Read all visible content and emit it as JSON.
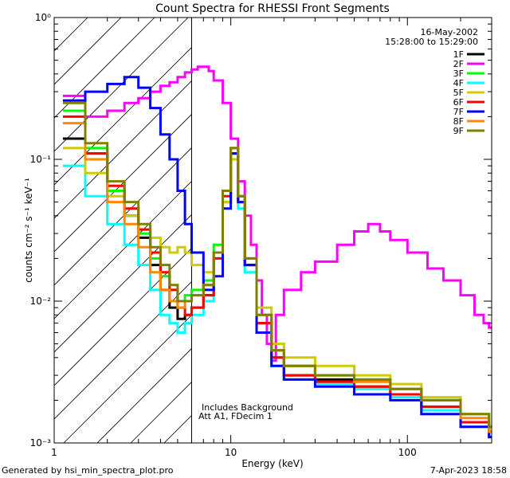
{
  "chart_data": {
    "type": "line",
    "title": "Count Spectra for RHESSI Front Segments",
    "xlabel": "Energy (keV)",
    "ylabel": "counts cm⁻² s⁻¹ keV⁻¹",
    "x_scale": "log",
    "y_scale": "log",
    "xlim": [
      1.0,
      300.0
    ],
    "ylim": [
      0.001,
      1.0
    ],
    "x_ticks": [
      {
        "value": 1,
        "label": "1"
      },
      {
        "value": 10,
        "label": "10"
      },
      {
        "value": 100,
        "label": "100"
      }
    ],
    "y_ticks": [
      {
        "value": 0.001,
        "label": "10⁻³"
      },
      {
        "value": 0.01,
        "label": "10⁻²"
      },
      {
        "value": 0.1,
        "label": "10⁻¹"
      },
      {
        "value": 1,
        "label": "10⁰"
      }
    ],
    "shaded_region": {
      "x_from": 1.0,
      "x_to": 6.0,
      "style": "diagonal-hatch"
    },
    "vertical_line_x": 6.0,
    "info_lines": [
      "16-May-2002",
      "15:28:00 to 15:29:00"
    ],
    "annotations": [
      "Includes Background",
      "Att A1, FDecim 1"
    ],
    "legend_position": "top-right",
    "series": [
      {
        "name": "1F",
        "color": "#000000",
        "points": [
          [
            1.12,
            0.14
          ],
          [
            1.5,
            0.11
          ],
          [
            2,
            0.06
          ],
          [
            2.5,
            0.04
          ],
          [
            3,
            0.028
          ],
          [
            3.5,
            0.018
          ],
          [
            4,
            0.012
          ],
          [
            4.5,
            0.009
          ],
          [
            5,
            0.0075
          ],
          [
            5.5,
            0.008
          ],
          [
            6,
            0.009
          ],
          [
            7,
            0.011
          ],
          [
            8,
            0.02
          ],
          [
            9,
            0.05
          ],
          [
            10,
            0.11
          ],
          [
            11,
            0.05
          ],
          [
            12,
            0.018
          ],
          [
            14,
            0.007
          ],
          [
            17,
            0.004
          ],
          [
            20,
            0.003
          ],
          [
            30,
            0.0028
          ],
          [
            50,
            0.0025
          ],
          [
            80,
            0.0022
          ],
          [
            120,
            0.0018
          ],
          [
            200,
            0.0014
          ],
          [
            290,
            0.0012
          ]
        ]
      },
      {
        "name": "2F",
        "color": "#ff00ff",
        "points": [
          [
            1.12,
            0.28
          ],
          [
            1.5,
            0.2
          ],
          [
            2,
            0.22
          ],
          [
            2.5,
            0.25
          ],
          [
            3,
            0.27
          ],
          [
            3.5,
            0.3
          ],
          [
            4,
            0.33
          ],
          [
            4.5,
            0.35
          ],
          [
            5,
            0.38
          ],
          [
            5.5,
            0.41
          ],
          [
            6,
            0.43
          ],
          [
            6.5,
            0.45
          ],
          [
            7,
            0.45
          ],
          [
            7.5,
            0.42
          ],
          [
            8,
            0.36
          ],
          [
            9,
            0.25
          ],
          [
            10,
            0.14
          ],
          [
            11,
            0.07
          ],
          [
            12,
            0.04
          ],
          [
            13,
            0.025
          ],
          [
            14,
            0.014
          ],
          [
            15,
            0.008
          ],
          [
            16,
            0.005
          ],
          [
            17,
            0.0038
          ],
          [
            18,
            0.008
          ],
          [
            20,
            0.012
          ],
          [
            25,
            0.016
          ],
          [
            30,
            0.019
          ],
          [
            40,
            0.025
          ],
          [
            50,
            0.031
          ],
          [
            60,
            0.035
          ],
          [
            70,
            0.031
          ],
          [
            80,
            0.027
          ],
          [
            100,
            0.022
          ],
          [
            130,
            0.017
          ],
          [
            160,
            0.014
          ],
          [
            200,
            0.011
          ],
          [
            240,
            0.008
          ],
          [
            270,
            0.007
          ],
          [
            290,
            0.0065
          ]
        ]
      },
      {
        "name": "3F",
        "color": "#00ff00",
        "points": [
          [
            1.12,
            0.22
          ],
          [
            1.5,
            0.12
          ],
          [
            2,
            0.06
          ],
          [
            2.5,
            0.045
          ],
          [
            3,
            0.03
          ],
          [
            3.5,
            0.02
          ],
          [
            4,
            0.015
          ],
          [
            4.5,
            0.012
          ],
          [
            5,
            0.01
          ],
          [
            5.5,
            0.011
          ],
          [
            6,
            0.012
          ],
          [
            7,
            0.014
          ],
          [
            8,
            0.025
          ],
          [
            9,
            0.06
          ],
          [
            10,
            0.12
          ],
          [
            11,
            0.055
          ],
          [
            12,
            0.02
          ],
          [
            14,
            0.008
          ],
          [
            17,
            0.0045
          ],
          [
            20,
            0.0035
          ],
          [
            30,
            0.003
          ],
          [
            50,
            0.0028
          ],
          [
            80,
            0.0024
          ],
          [
            120,
            0.002
          ],
          [
            200,
            0.0016
          ],
          [
            290,
            0.0013
          ]
        ]
      },
      {
        "name": "4F",
        "color": "#00ffff",
        "points": [
          [
            1.12,
            0.09
          ],
          [
            1.5,
            0.055
          ],
          [
            2,
            0.035
          ],
          [
            2.5,
            0.025
          ],
          [
            3,
            0.018
          ],
          [
            3.5,
            0.012
          ],
          [
            4,
            0.008
          ],
          [
            4.5,
            0.007
          ],
          [
            5,
            0.006
          ],
          [
            5.5,
            0.007
          ],
          [
            6,
            0.008
          ],
          [
            7,
            0.01
          ],
          [
            8,
            0.02
          ],
          [
            9,
            0.05
          ],
          [
            10,
            0.1
          ],
          [
            11,
            0.045
          ],
          [
            12,
            0.016
          ],
          [
            14,
            0.006
          ],
          [
            17,
            0.0035
          ],
          [
            20,
            0.0028
          ],
          [
            30,
            0.0026
          ],
          [
            50,
            0.0024
          ],
          [
            80,
            0.0021
          ],
          [
            120,
            0.0017
          ],
          [
            200,
            0.0013
          ],
          [
            290,
            0.0011
          ]
        ]
      },
      {
        "name": "5F",
        "color": "#cccc00",
        "points": [
          [
            1.12,
            0.12
          ],
          [
            1.5,
            0.08
          ],
          [
            2,
            0.055
          ],
          [
            2.5,
            0.04
          ],
          [
            3,
            0.032
          ],
          [
            3.5,
            0.028
          ],
          [
            4,
            0.024
          ],
          [
            4.5,
            0.022
          ],
          [
            5,
            0.024
          ],
          [
            5.5,
            0.022
          ],
          [
            6,
            0.018
          ],
          [
            7,
            0.016
          ],
          [
            8,
            0.02
          ],
          [
            9,
            0.05
          ],
          [
            10,
            0.1
          ],
          [
            11,
            0.05
          ],
          [
            12,
            0.02
          ],
          [
            14,
            0.009
          ],
          [
            17,
            0.005
          ],
          [
            20,
            0.004
          ],
          [
            30,
            0.0035
          ],
          [
            50,
            0.003
          ],
          [
            80,
            0.0026
          ],
          [
            120,
            0.0021
          ],
          [
            200,
            0.0016
          ],
          [
            290,
            0.0013
          ]
        ]
      },
      {
        "name": "6F",
        "color": "#ff0000",
        "points": [
          [
            1.12,
            0.2
          ],
          [
            1.5,
            0.11
          ],
          [
            2,
            0.065
          ],
          [
            2.5,
            0.045
          ],
          [
            3,
            0.032
          ],
          [
            3.5,
            0.022
          ],
          [
            4,
            0.016
          ],
          [
            4.5,
            0.012
          ],
          [
            5,
            0.009
          ],
          [
            5.5,
            0.008
          ],
          [
            6,
            0.009
          ],
          [
            7,
            0.011
          ],
          [
            8,
            0.02
          ],
          [
            9,
            0.055
          ],
          [
            10,
            0.11
          ],
          [
            11,
            0.05
          ],
          [
            12,
            0.018
          ],
          [
            14,
            0.007
          ],
          [
            17,
            0.004
          ],
          [
            20,
            0.003
          ],
          [
            30,
            0.0027
          ],
          [
            50,
            0.0025
          ],
          [
            80,
            0.0022
          ],
          [
            120,
            0.0018
          ],
          [
            200,
            0.0014
          ],
          [
            290,
            0.0011
          ]
        ]
      },
      {
        "name": "7F",
        "color": "#0000ff",
        "points": [
          [
            1.12,
            0.26
          ],
          [
            1.5,
            0.3
          ],
          [
            2,
            0.34
          ],
          [
            2.5,
            0.38
          ],
          [
            3,
            0.32
          ],
          [
            3.5,
            0.23
          ],
          [
            4,
            0.15
          ],
          [
            4.5,
            0.1
          ],
          [
            5,
            0.06
          ],
          [
            5.5,
            0.035
          ],
          [
            6,
            0.022
          ],
          [
            7,
            0.012
          ],
          [
            8,
            0.015
          ],
          [
            9,
            0.045
          ],
          [
            10,
            0.11
          ],
          [
            11,
            0.05
          ],
          [
            12,
            0.018
          ],
          [
            14,
            0.006
          ],
          [
            17,
            0.0035
          ],
          [
            20,
            0.0028
          ],
          [
            30,
            0.0025
          ],
          [
            50,
            0.0022
          ],
          [
            80,
            0.002
          ],
          [
            120,
            0.0016
          ],
          [
            200,
            0.0013
          ],
          [
            290,
            0.0011
          ]
        ]
      },
      {
        "name": "8F",
        "color": "#ff8800",
        "points": [
          [
            1.12,
            0.18
          ],
          [
            1.5,
            0.1
          ],
          [
            2,
            0.05
          ],
          [
            2.5,
            0.035
          ],
          [
            3,
            0.024
          ],
          [
            3.5,
            0.016
          ],
          [
            4,
            0.012
          ],
          [
            4.5,
            0.01
          ],
          [
            5,
            0.009
          ],
          [
            5.5,
            0.01
          ],
          [
            6,
            0.011
          ],
          [
            7,
            0.013
          ],
          [
            8,
            0.022
          ],
          [
            9,
            0.06
          ],
          [
            10,
            0.12
          ],
          [
            11,
            0.055
          ],
          [
            12,
            0.02
          ],
          [
            14,
            0.008
          ],
          [
            17,
            0.0045
          ],
          [
            20,
            0.0035
          ],
          [
            30,
            0.003
          ],
          [
            50,
            0.0027
          ],
          [
            80,
            0.0024
          ],
          [
            120,
            0.002
          ],
          [
            200,
            0.0015
          ],
          [
            290,
            0.0012
          ]
        ]
      },
      {
        "name": "9F",
        "color": "#808000",
        "points": [
          [
            1.12,
            0.25
          ],
          [
            1.5,
            0.13
          ],
          [
            2,
            0.07
          ],
          [
            2.5,
            0.05
          ],
          [
            3,
            0.035
          ],
          [
            3.5,
            0.024
          ],
          [
            4,
            0.018
          ],
          [
            4.5,
            0.013
          ],
          [
            5,
            0.01
          ],
          [
            5.5,
            0.01
          ],
          [
            6,
            0.011
          ],
          [
            7,
            0.013
          ],
          [
            8,
            0.022
          ],
          [
            9,
            0.06
          ],
          [
            10,
            0.12
          ],
          [
            11,
            0.055
          ],
          [
            12,
            0.02
          ],
          [
            14,
            0.008
          ],
          [
            17,
            0.0045
          ],
          [
            20,
            0.0035
          ],
          [
            30,
            0.003
          ],
          [
            50,
            0.0028
          ],
          [
            80,
            0.0024
          ],
          [
            120,
            0.002
          ],
          [
            200,
            0.0016
          ],
          [
            290,
            0.0013
          ]
        ]
      }
    ]
  },
  "footer": {
    "left": "Generated by hsi_min_spectra_plot.pro",
    "right": "7-Apr-2023 18:58"
  }
}
